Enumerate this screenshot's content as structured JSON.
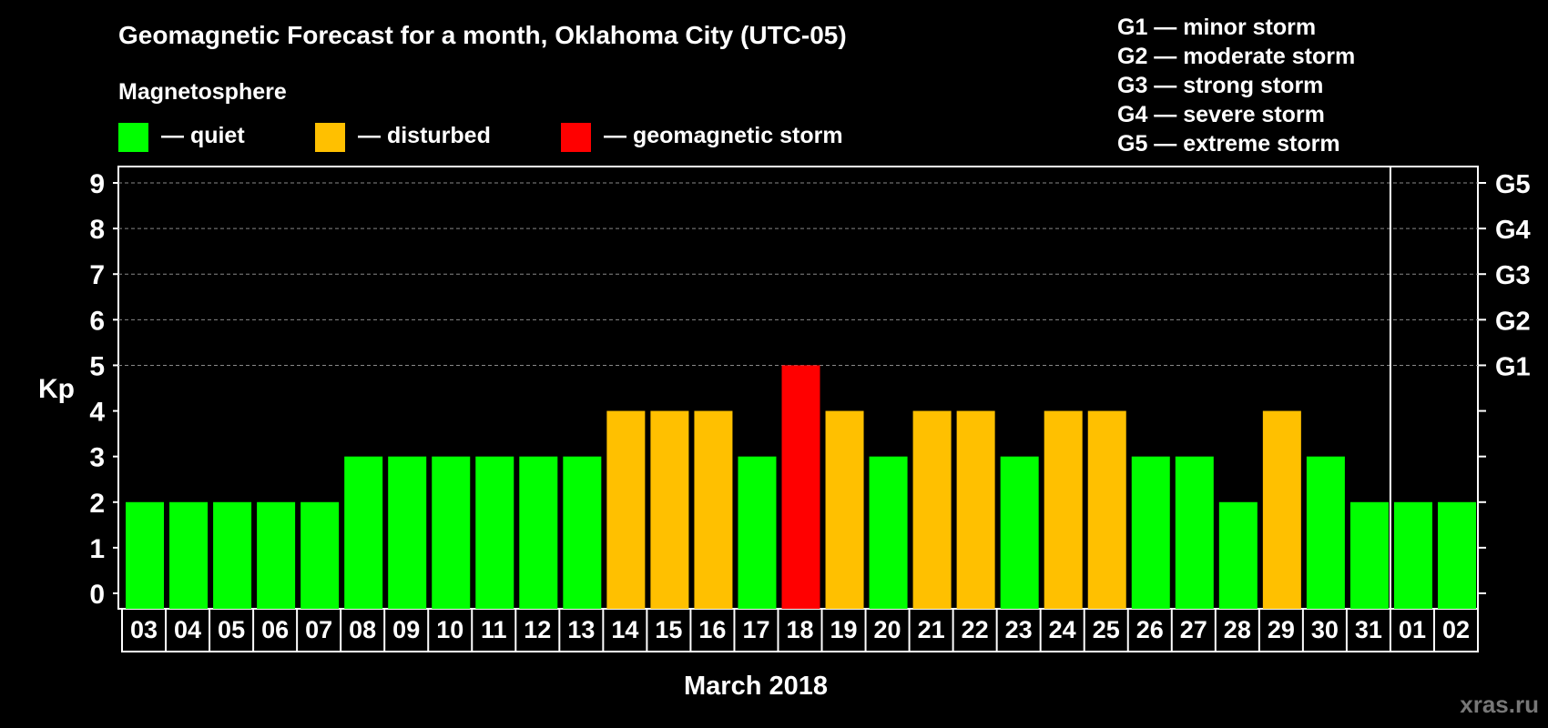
{
  "chart_data": {
    "type": "bar",
    "title": "Geomagnetic Forecast for a month, Oklahoma City (UTC-05)",
    "legend_title": "Magnetosphere",
    "legend": [
      {
        "label": "— quiet",
        "color": "#00ff00"
      },
      {
        "label": "— disturbed",
        "color": "#ffc000"
      },
      {
        "label": "— geomagnetic storm",
        "color": "#ff0000"
      }
    ],
    "storm_scale": [
      "G1 — minor storm",
      "G2 — moderate storm",
      "G3 — strong storm",
      "G4 — severe storm",
      "G5 — extreme storm"
    ],
    "ylabel": "Kp",
    "xlabel": "March 2018",
    "ylim": [
      0,
      9
    ],
    "yticks": [
      "0",
      "1",
      "2",
      "3",
      "4",
      "5",
      "6",
      "7",
      "8",
      "9"
    ],
    "right_axis": [
      {
        "label": "G1",
        "value": 5
      },
      {
        "label": "G2",
        "value": 6
      },
      {
        "label": "G3",
        "value": 7
      },
      {
        "label": "G4",
        "value": 8
      },
      {
        "label": "G5",
        "value": 9
      }
    ],
    "categories": [
      "03",
      "04",
      "05",
      "06",
      "07",
      "08",
      "09",
      "10",
      "11",
      "12",
      "13",
      "14",
      "15",
      "16",
      "17",
      "18",
      "19",
      "20",
      "21",
      "22",
      "23",
      "24",
      "25",
      "26",
      "27",
      "28",
      "29",
      "30",
      "31",
      "01",
      "02"
    ],
    "values": [
      2,
      2,
      2,
      2,
      2,
      3,
      3,
      3,
      3,
      3,
      3,
      4,
      4,
      4,
      3,
      5,
      4,
      3,
      4,
      4,
      3,
      4,
      4,
      3,
      3,
      2,
      4,
      3,
      2,
      2,
      2
    ],
    "month_divider_after": "31",
    "colors": {
      "quiet": "#00ff00",
      "disturbed": "#ffc000",
      "storm": "#ff0000",
      "background": "#000000",
      "axis": "#ffffff"
    }
  },
  "watermark": "xras.ru"
}
